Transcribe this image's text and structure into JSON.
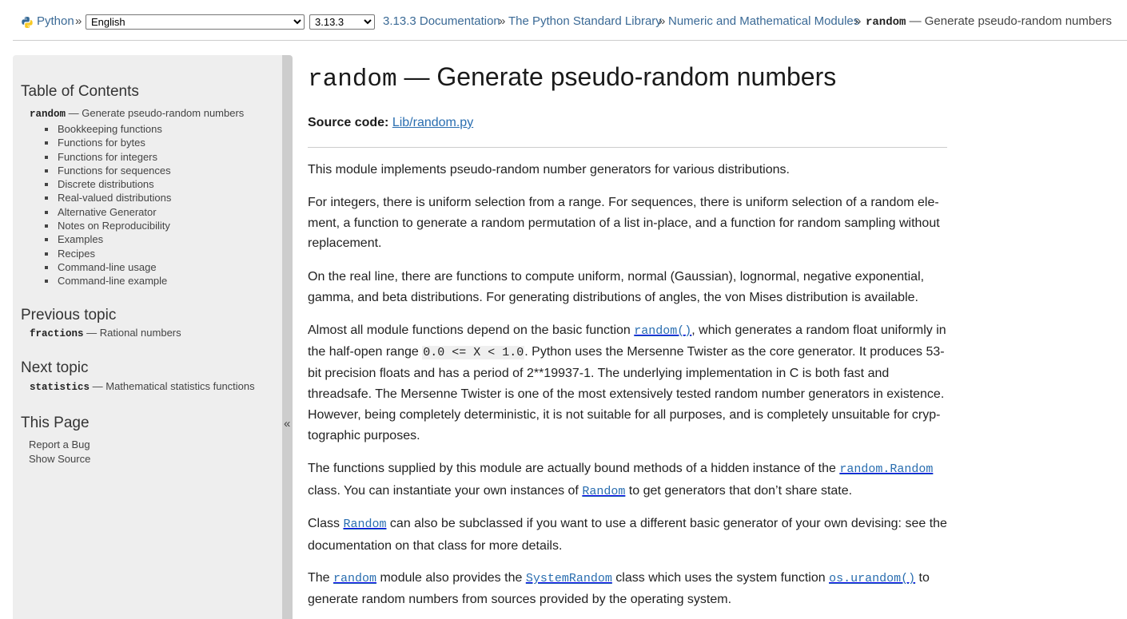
{
  "nav": {
    "home": "Python",
    "separator": "»",
    "language": "English",
    "language_options": [
      "English"
    ],
    "version": "3.13.3",
    "version_options": [
      "3.13.3"
    ],
    "breadcrumbs": [
      "3.13.3 Documentation",
      "The Python Standard Library",
      "Numeric and Mathematical Modules"
    ],
    "current_code": "random",
    "current_text": " — Generate pseudo-random numbers"
  },
  "sidebar": {
    "toc_heading": "Table of Contents",
    "toc_root_code": "random",
    "toc_root_text": " — Generate pseudo-random numbers",
    "toc_items": [
      "Bookkeeping functions",
      "Functions for bytes",
      "Functions for integers",
      "Functions for sequences",
      "Discrete distributions",
      "Real-valued distributions",
      "Alternative Generator",
      "Notes on Reproducibility",
      "Examples",
      "Recipes",
      "Command-line usage",
      "Command-line example"
    ],
    "prev_heading": "Previous topic",
    "prev_code": "fractions",
    "prev_text": " — Rational numbers",
    "next_heading": "Next topic",
    "next_code": "statistics",
    "next_text": " — Mathematical statistics functions",
    "page_heading": "This Page",
    "report_bug": "Report a Bug",
    "show_source": "Show Source",
    "collapse": "«"
  },
  "main": {
    "title_code": "random",
    "title_text": " — Generate pseudo-random numbers",
    "source_label": "Source code:",
    "source_link": "Lib/random.py",
    "p1": "This module implements pseudo-random number generators for various distributions.",
    "p2": "For integers, there is uniform selection from a range. For sequences, there is uniform selection of a random ele­ment, a function to generate a random permutation of a list in-place, and a function for random sampling without replacement.",
    "p3": "On the real line, there are functions to compute uniform, normal (Gaussian), lognormal, negative exponential, gamma, and beta distributions. For generating distributions of angles, the von Mises distribution is available.",
    "p4_a": "Almost all module functions depend on the basic function ",
    "p4_ref": "random()",
    "p4_b": ", which generates a random float uniformly in the half-open range ",
    "p4_lit": "0.0 <= X < 1.0",
    "p4_c": ". Python uses the Mersenne Twister as the core generator. It produces 53-bit precision floats and has a period of 2**19937-1. The underlying implementation in C is both fast and threadsafe. The Mersenne Twister is one of the most extensively tested random number generators in existence. However, being completely deterministic, it is not suitable for all purposes, and is completely unsuitable for cryp­tographic purposes.",
    "p5_a": "The functions supplied by this module are actually bound methods of a hidden instance of the ",
    "p5_ref1": "random.Random",
    "p5_b": " class. You can instantiate your own instances of ",
    "p5_ref2": "Random",
    "p5_c": " to get generators that don’t share state.",
    "p6_a": "Class ",
    "p6_ref": "Random",
    "p6_b": " can also be subclassed if you want to use a different basic generator of your own devising: see the documentation on that class for more details.",
    "p7_a": "The ",
    "p7_ref1": "random",
    "p7_b": " module also provides the ",
    "p7_ref2": "SystemRandom",
    "p7_c": " class which uses the system function ",
    "p7_ref3": "os.urandom()",
    "p7_d": " to generate random numbers from sources provided by the operating system."
  },
  "colors": {
    "link": "#2a6eb0",
    "nav_link": "#3b6a96",
    "sidebar_bg": "#eeeeee",
    "collapse_bg": "#cdcdcd"
  }
}
